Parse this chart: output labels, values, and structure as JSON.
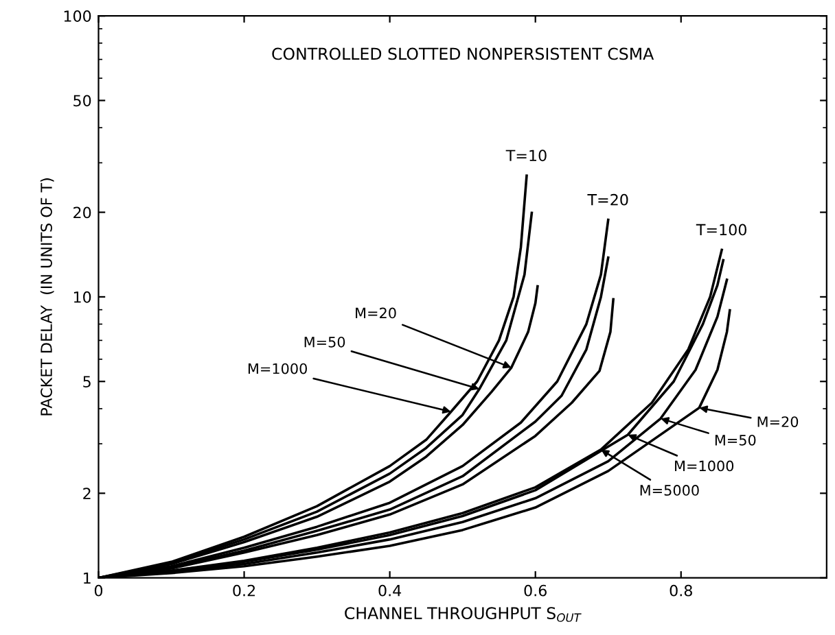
{
  "chart_data": {
    "type": "line",
    "title": "CONTROLLED SLOTTED NONPERSISTENT CSMA",
    "xlabel": "CHANNEL THROUGHPUT S$_{OUT}$",
    "ylabel": "PACKET DELAY  (IN UNITS OF T)",
    "xlim": [
      0,
      1
    ],
    "xticks": [
      0,
      0.2,
      0.4,
      0.6,
      0.8
    ],
    "ylim": [
      1,
      100
    ],
    "yticks": [
      1,
      2,
      5,
      10,
      20,
      50,
      100
    ],
    "log": "y",
    "grid": false,
    "marker": "none",
    "line_style": "solid",
    "series": [
      {
        "color": "#000000",
        "x": [
          0,
          0.1,
          0.2,
          0.3,
          0.4,
          0.45,
          0.484,
          0.52,
          0.55,
          0.57,
          0.58,
          0.588
        ],
        "values": [
          1,
          1.14,
          1.4,
          1.8,
          2.5,
          3.1,
          3.9,
          5,
          7,
          10,
          15,
          27
        ]
      },
      {
        "color": "#000000",
        "x": [
          0,
          0.1,
          0.2,
          0.3,
          0.4,
          0.45,
          0.5,
          0.523,
          0.56,
          0.585,
          0.595
        ],
        "values": [
          1,
          1.13,
          1.37,
          1.72,
          2.35,
          2.9,
          3.8,
          4.7,
          7,
          12,
          19.9
        ]
      },
      {
        "color": "#000000",
        "x": [
          0,
          0.1,
          0.2,
          0.3,
          0.4,
          0.45,
          0.5,
          0.54,
          0.567,
          0.59,
          0.6,
          0.603
        ],
        "values": [
          1,
          1.12,
          1.34,
          1.65,
          2.2,
          2.7,
          3.5,
          4.6,
          5.6,
          7.5,
          9.5,
          10.9
        ]
      },
      {
        "color": "#000000",
        "x": [
          0,
          0.1,
          0.2,
          0.3,
          0.4,
          0.5,
          0.58,
          0.63,
          0.67,
          0.69,
          0.7
        ],
        "values": [
          1,
          1.1,
          1.28,
          1.52,
          1.85,
          2.5,
          3.57,
          5,
          8,
          12,
          18.8
        ]
      },
      {
        "color": "#000000",
        "x": [
          0,
          0.1,
          0.2,
          0.3,
          0.4,
          0.5,
          0.6,
          0.636,
          0.67,
          0.69,
          0.7
        ],
        "values": [
          1,
          1.09,
          1.25,
          1.47,
          1.75,
          2.3,
          3.6,
          4.45,
          6.5,
          10,
          13.8
        ]
      },
      {
        "color": "#000000",
        "x": [
          0,
          0.1,
          0.2,
          0.3,
          0.4,
          0.5,
          0.6,
          0.65,
          0.688,
          0.703,
          0.707
        ],
        "values": [
          1,
          1.08,
          1.23,
          1.42,
          1.68,
          2.15,
          3.2,
          4.2,
          5.45,
          7.5,
          9.8
        ]
      },
      {
        "color": "#000000",
        "x": [
          0,
          0.1,
          0.2,
          0.3,
          0.4,
          0.5,
          0.6,
          0.69,
          0.76,
          0.81,
          0.84,
          0.856
        ],
        "values": [
          1,
          1.06,
          1.15,
          1.28,
          1.45,
          1.7,
          2.1,
          2.86,
          4.2,
          6.5,
          10,
          14.7
        ]
      },
      {
        "color": "#000000",
        "x": [
          0,
          0.1,
          0.2,
          0.3,
          0.4,
          0.5,
          0.6,
          0.727,
          0.79,
          0.83,
          0.85,
          0.858
        ],
        "values": [
          1,
          1.06,
          1.14,
          1.26,
          1.42,
          1.66,
          2.05,
          3.23,
          5,
          8,
          11,
          13.5
        ]
      },
      {
        "color": "#000000",
        "x": [
          0,
          0.1,
          0.2,
          0.3,
          0.4,
          0.5,
          0.6,
          0.7,
          0.772,
          0.82,
          0.85,
          0.863
        ],
        "values": [
          1,
          1.05,
          1.12,
          1.23,
          1.37,
          1.58,
          1.92,
          2.6,
          3.69,
          5.5,
          8.5,
          11.5
        ]
      },
      {
        "color": "#000000",
        "x": [
          0,
          0.1,
          0.2,
          0.3,
          0.4,
          0.5,
          0.6,
          0.7,
          0.825,
          0.85,
          0.863,
          0.867
        ],
        "values": [
          1,
          1.04,
          1.1,
          1.19,
          1.3,
          1.48,
          1.78,
          2.4,
          4.03,
          5.5,
          7.5,
          8.95
        ]
      }
    ],
    "annotations": [
      {
        "text": "T=10",
        "x": 0.588,
        "y": 27
      },
      {
        "text": "T=20",
        "x": 0.7,
        "y": 18.8
      },
      {
        "text": "T=100",
        "x": 0.856,
        "y": 14.7
      },
      {
        "text": "M=20",
        "x": 0.567,
        "y": 5.6
      },
      {
        "text": "M=50",
        "x": 0.523,
        "y": 4.7
      },
      {
        "text": "M=1000",
        "x": 0.484,
        "y": 3.9
      },
      {
        "text": "M=20",
        "x": 0.825,
        "y": 4.03
      },
      {
        "text": "M=50",
        "x": 0.772,
        "y": 3.69
      },
      {
        "text": "M=1000",
        "x": 0.727,
        "y": 3.23
      },
      {
        "text": "M=5000",
        "x": 0.69,
        "y": 2.86
      }
    ]
  }
}
